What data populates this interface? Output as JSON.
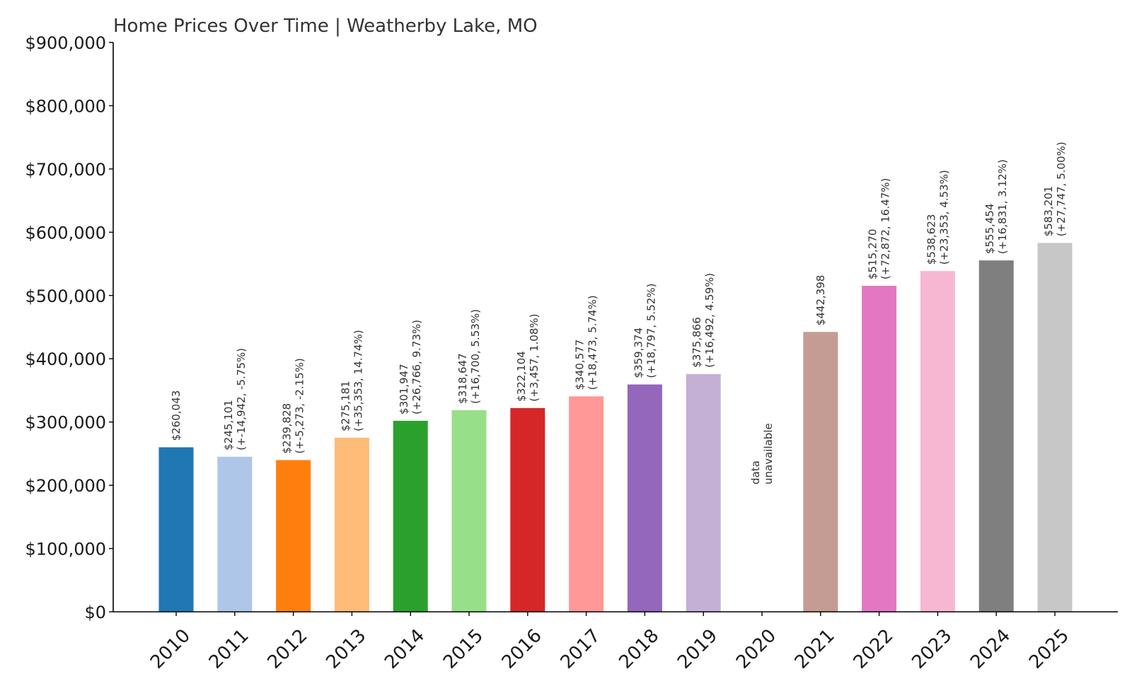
{
  "chart_data": {
    "type": "bar",
    "title": "Home Prices Over Time | Weatherby Lake, MO",
    "xlabel": "",
    "ylabel": "",
    "ylim": [
      0,
      900000
    ],
    "yticks": [
      0,
      100000,
      200000,
      300000,
      400000,
      500000,
      600000,
      700000,
      800000,
      900000
    ],
    "ytick_labels": [
      "$0",
      "$100,000",
      "$200,000",
      "$300,000",
      "$400,000",
      "$500,000",
      "$600,000",
      "$700,000",
      "$800,000",
      "$900,000"
    ],
    "grid": false,
    "legend": "none",
    "categories": [
      "2010",
      "2011",
      "2012",
      "2013",
      "2014",
      "2015",
      "2016",
      "2017",
      "2018",
      "2019",
      "2020",
      "2021",
      "2022",
      "2023",
      "2024",
      "2025"
    ],
    "values": [
      260043,
      245101,
      239828,
      275181,
      301947,
      318647,
      322104,
      340577,
      359374,
      375866,
      null,
      442398,
      515270,
      538623,
      555454,
      583201
    ],
    "colors": [
      "#1f77b4",
      "#aec7e8",
      "#ff7f0e",
      "#ffbb78",
      "#2ca02c",
      "#98df8a",
      "#d62728",
      "#ff9896",
      "#9467bd",
      "#c5b0d5",
      "#8c564b",
      "#c49c94",
      "#e377c2",
      "#f7b6d2",
      "#7f7f7f",
      "#c7c7c7"
    ],
    "data_labels": [
      [
        "$260,043"
      ],
      [
        "$245,101",
        "(+-14,942, -5.75%)"
      ],
      [
        "$239,828",
        "(+-5,273, -2.15%)"
      ],
      [
        "$275,181",
        "(+35,353, 14.74%)"
      ],
      [
        "$301,947",
        "(+26,766, 9.73%)"
      ],
      [
        "$318,647",
        "(+16,700, 5.53%)"
      ],
      [
        "$322,104",
        "(+3,457, 1.08%)"
      ],
      [
        "$340,577",
        "(+18,473, 5.74%)"
      ],
      [
        "$359,374",
        "(+18,797, 5.52%)"
      ],
      [
        "$375,866",
        "(+16,492, 4.59%)"
      ],
      [
        "data",
        "unavailable"
      ],
      [
        "$442,398"
      ],
      [
        "$515,270",
        "(+72,872, 16.47%)"
      ],
      [
        "$538,623",
        "(+23,353, 4.53%)"
      ],
      [
        "$555,454",
        "(+16,831, 3.12%)"
      ],
      [
        "$583,201",
        "(+27,747, 5.00%)"
      ]
    ]
  }
}
